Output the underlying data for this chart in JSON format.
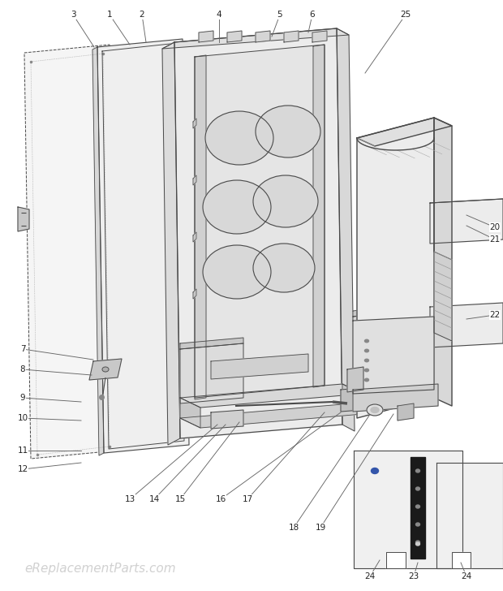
{
  "bg_color": "#ffffff",
  "lc": "#4a4a4a",
  "lc_light": "#888888",
  "lc_dashed": "#777777",
  "watermark_text": "eReplacementParts.com",
  "watermark_color": "#cccccc",
  "figsize": [
    6.2,
    7.28
  ],
  "dpi": 100,
  "xlim": [
    0,
    620
  ],
  "ylim": [
    0,
    728
  ]
}
